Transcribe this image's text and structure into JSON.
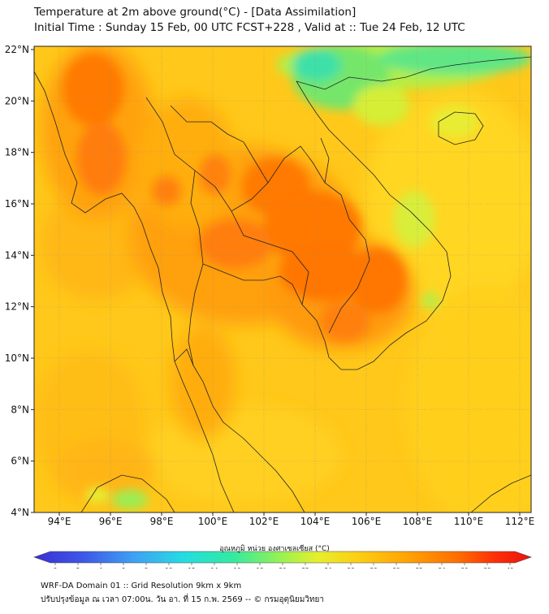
{
  "title_line1": "Temperature at 2m above ground(°C) - [Data Assimilation]",
  "title_line2": "Initial Time : Sunday 15 Feb, 00 UTC FCST+228 , Valid at :: Tue 24 Feb, 12 UTC",
  "lat_labels": [
    "22°N",
    "20°N",
    "18°N",
    "16°N",
    "14°N",
    "12°N",
    "10°N",
    "8°N",
    "6°N",
    "4°N"
  ],
  "lon_labels": [
    "94°E",
    "96°E",
    "98°E",
    "100°E",
    "102°E",
    "104°E",
    "106°E",
    "108°E",
    "110°E",
    "112°E"
  ],
  "colorbar": {
    "title": "อุณหภูมิ หน่วย องศาเซลเซียส (°C)",
    "ticks": [
      "0",
      "2",
      "4",
      "6",
      "8",
      "10",
      "12",
      "14",
      "16",
      "18",
      "20",
      "22",
      "24",
      "26",
      "28",
      "30",
      "32",
      "34",
      "36",
      "38",
      "40"
    ],
    "colors": [
      "#3a2fd6",
      "#3e58e6",
      "#3f7ff0",
      "#3ea6f5",
      "#35c6f2",
      "#22dce0",
      "#1fe6c2",
      "#33eaa0",
      "#5aee7c",
      "#8ef25a",
      "#c2f23e",
      "#e6ee2e",
      "#f6e020",
      "#fccf14",
      "#ffbb0c",
      "#ffa305",
      "#ff8a02",
      "#ff6f00",
      "#ff5000",
      "#fc2e08",
      "#ec1010"
    ]
  },
  "footer_line1": "WRF-DA Domain 01 :: Grid Resolution 9km x 9km",
  "footer_line2": "ปรับปรุงข้อมูล ณ เวลา 07:00น. วัน อา. ที่ 15 ก.พ. 2569 -- © กรมอุตุนิยมวิทยา"
}
